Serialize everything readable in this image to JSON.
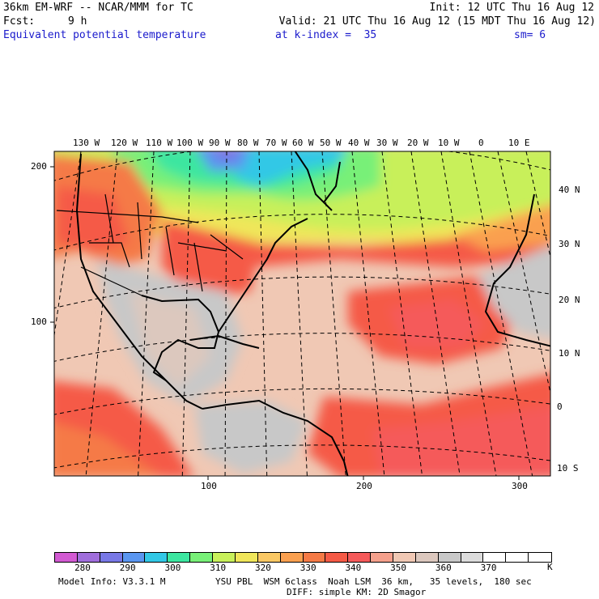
{
  "header": {
    "line1_left": "36km EM-WRF -- NCAR/MMM for TC",
    "line1_right": "Init: 12 UTC Thu 16 Aug 12",
    "line2_left_label": "Fcst:",
    "line2_left_value": "9 h",
    "line2_right": "Valid: 21 UTC Thu 16 Aug 12 (15 MDT Thu 16 Aug 12)",
    "field_name": "Equivalent potential temperature",
    "level": "at k-index =  35",
    "smoothing": "sm= 6"
  },
  "map": {
    "lon_labels": [
      "130 W",
      "120 W",
      "110 W",
      "100 W",
      "90 W",
      "80 W",
      "70 W",
      "60 W",
      "50 W",
      "40 W",
      "30 W",
      "20 W",
      "10 W",
      "0",
      "10 E"
    ],
    "lat_labels": [
      "40 N",
      "30 N",
      "20 N",
      "10 N",
      "0",
      "10 S"
    ],
    "grid_y_labels": [
      "200",
      "100"
    ],
    "grid_x_labels": [
      "100",
      "200",
      "300"
    ]
  },
  "colorbar": {
    "colors": [
      "#d25ad2",
      "#a06edc",
      "#7878e6",
      "#5a96f0",
      "#32c8e6",
      "#3ce6a0",
      "#78f078",
      "#c8f05a",
      "#f0e65a",
      "#fac864",
      "#faa050",
      "#f57a46",
      "#f55a46",
      "#f55a5a",
      "#f5a08c",
      "#f0c8b4",
      "#dcc8be",
      "#c8c8c8",
      "#dcdcdc",
      "#ffffff",
      "#ffffff",
      "#ffffff"
    ],
    "labels": [
      "280",
      "290",
      "300",
      "310",
      "320",
      "330",
      "340",
      "350",
      "360",
      "370"
    ],
    "unit": "K"
  },
  "footer": {
    "model_info": "Model Info: V3.3.1 M",
    "physics": "YSU PBL  WSM 6class  Noah LSM  36 km,   35 levels,  180 sec",
    "diffusion": "DIFF: simple KM: 2D Smagor"
  }
}
